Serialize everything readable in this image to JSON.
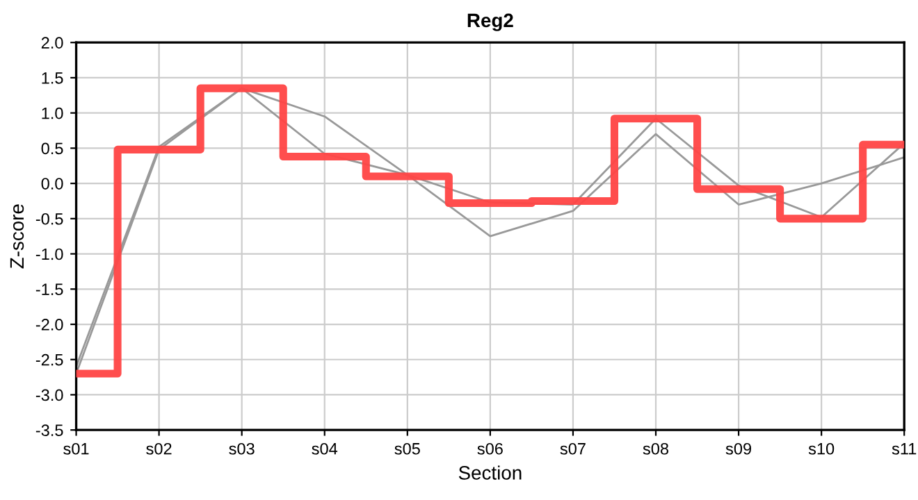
{
  "chart_data": {
    "type": "line",
    "title": "Reg2",
    "xlabel": "Section",
    "ylabel": "Z-score",
    "categories": [
      "s01",
      "s02",
      "s03",
      "s04",
      "s05",
      "s06",
      "s07",
      "s08",
      "s09",
      "s10",
      "s11"
    ],
    "series": [
      {
        "color": "#999999",
        "values": [
          -2.6,
          0.52,
          1.35,
          0.95,
          0.12,
          -0.27,
          -0.3,
          0.92,
          -0.03,
          -0.48,
          0.57
        ]
      },
      {
        "color": "#999999",
        "values": [
          -2.7,
          0.48,
          1.35,
          0.42,
          0.12,
          -0.75,
          -0.39,
          0.7,
          -0.3,
          0.0,
          0.37
        ]
      },
      {
        "type": "step",
        "color": "#ff4444",
        "values": [
          -2.7,
          0.48,
          1.35,
          0.38,
          0.1,
          -0.28,
          -0.25,
          0.92,
          -0.08,
          -0.5,
          0.55
        ]
      }
    ],
    "ylim": [
      -3.5,
      2.0
    ],
    "yticks": [
      {
        "value": -3.5,
        "label": "-3.5"
      },
      {
        "value": -3.0,
        "label": "-3.0"
      },
      {
        "value": -2.5,
        "label": "-2.5"
      },
      {
        "value": -2.0,
        "label": "-2.0"
      },
      {
        "value": -1.5,
        "label": "-1.5"
      },
      {
        "value": -1.0,
        "label": "-1.0"
      },
      {
        "value": -0.5,
        "label": "-0.5"
      },
      {
        "value": 0.0,
        "label": "0.0"
      },
      {
        "value": 0.5,
        "label": "0.5"
      },
      {
        "value": 1.0,
        "label": "1.0"
      },
      {
        "value": 1.5,
        "label": "1.5"
      },
      {
        "value": 2.0,
        "label": "2.0"
      }
    ],
    "grid": true
  }
}
